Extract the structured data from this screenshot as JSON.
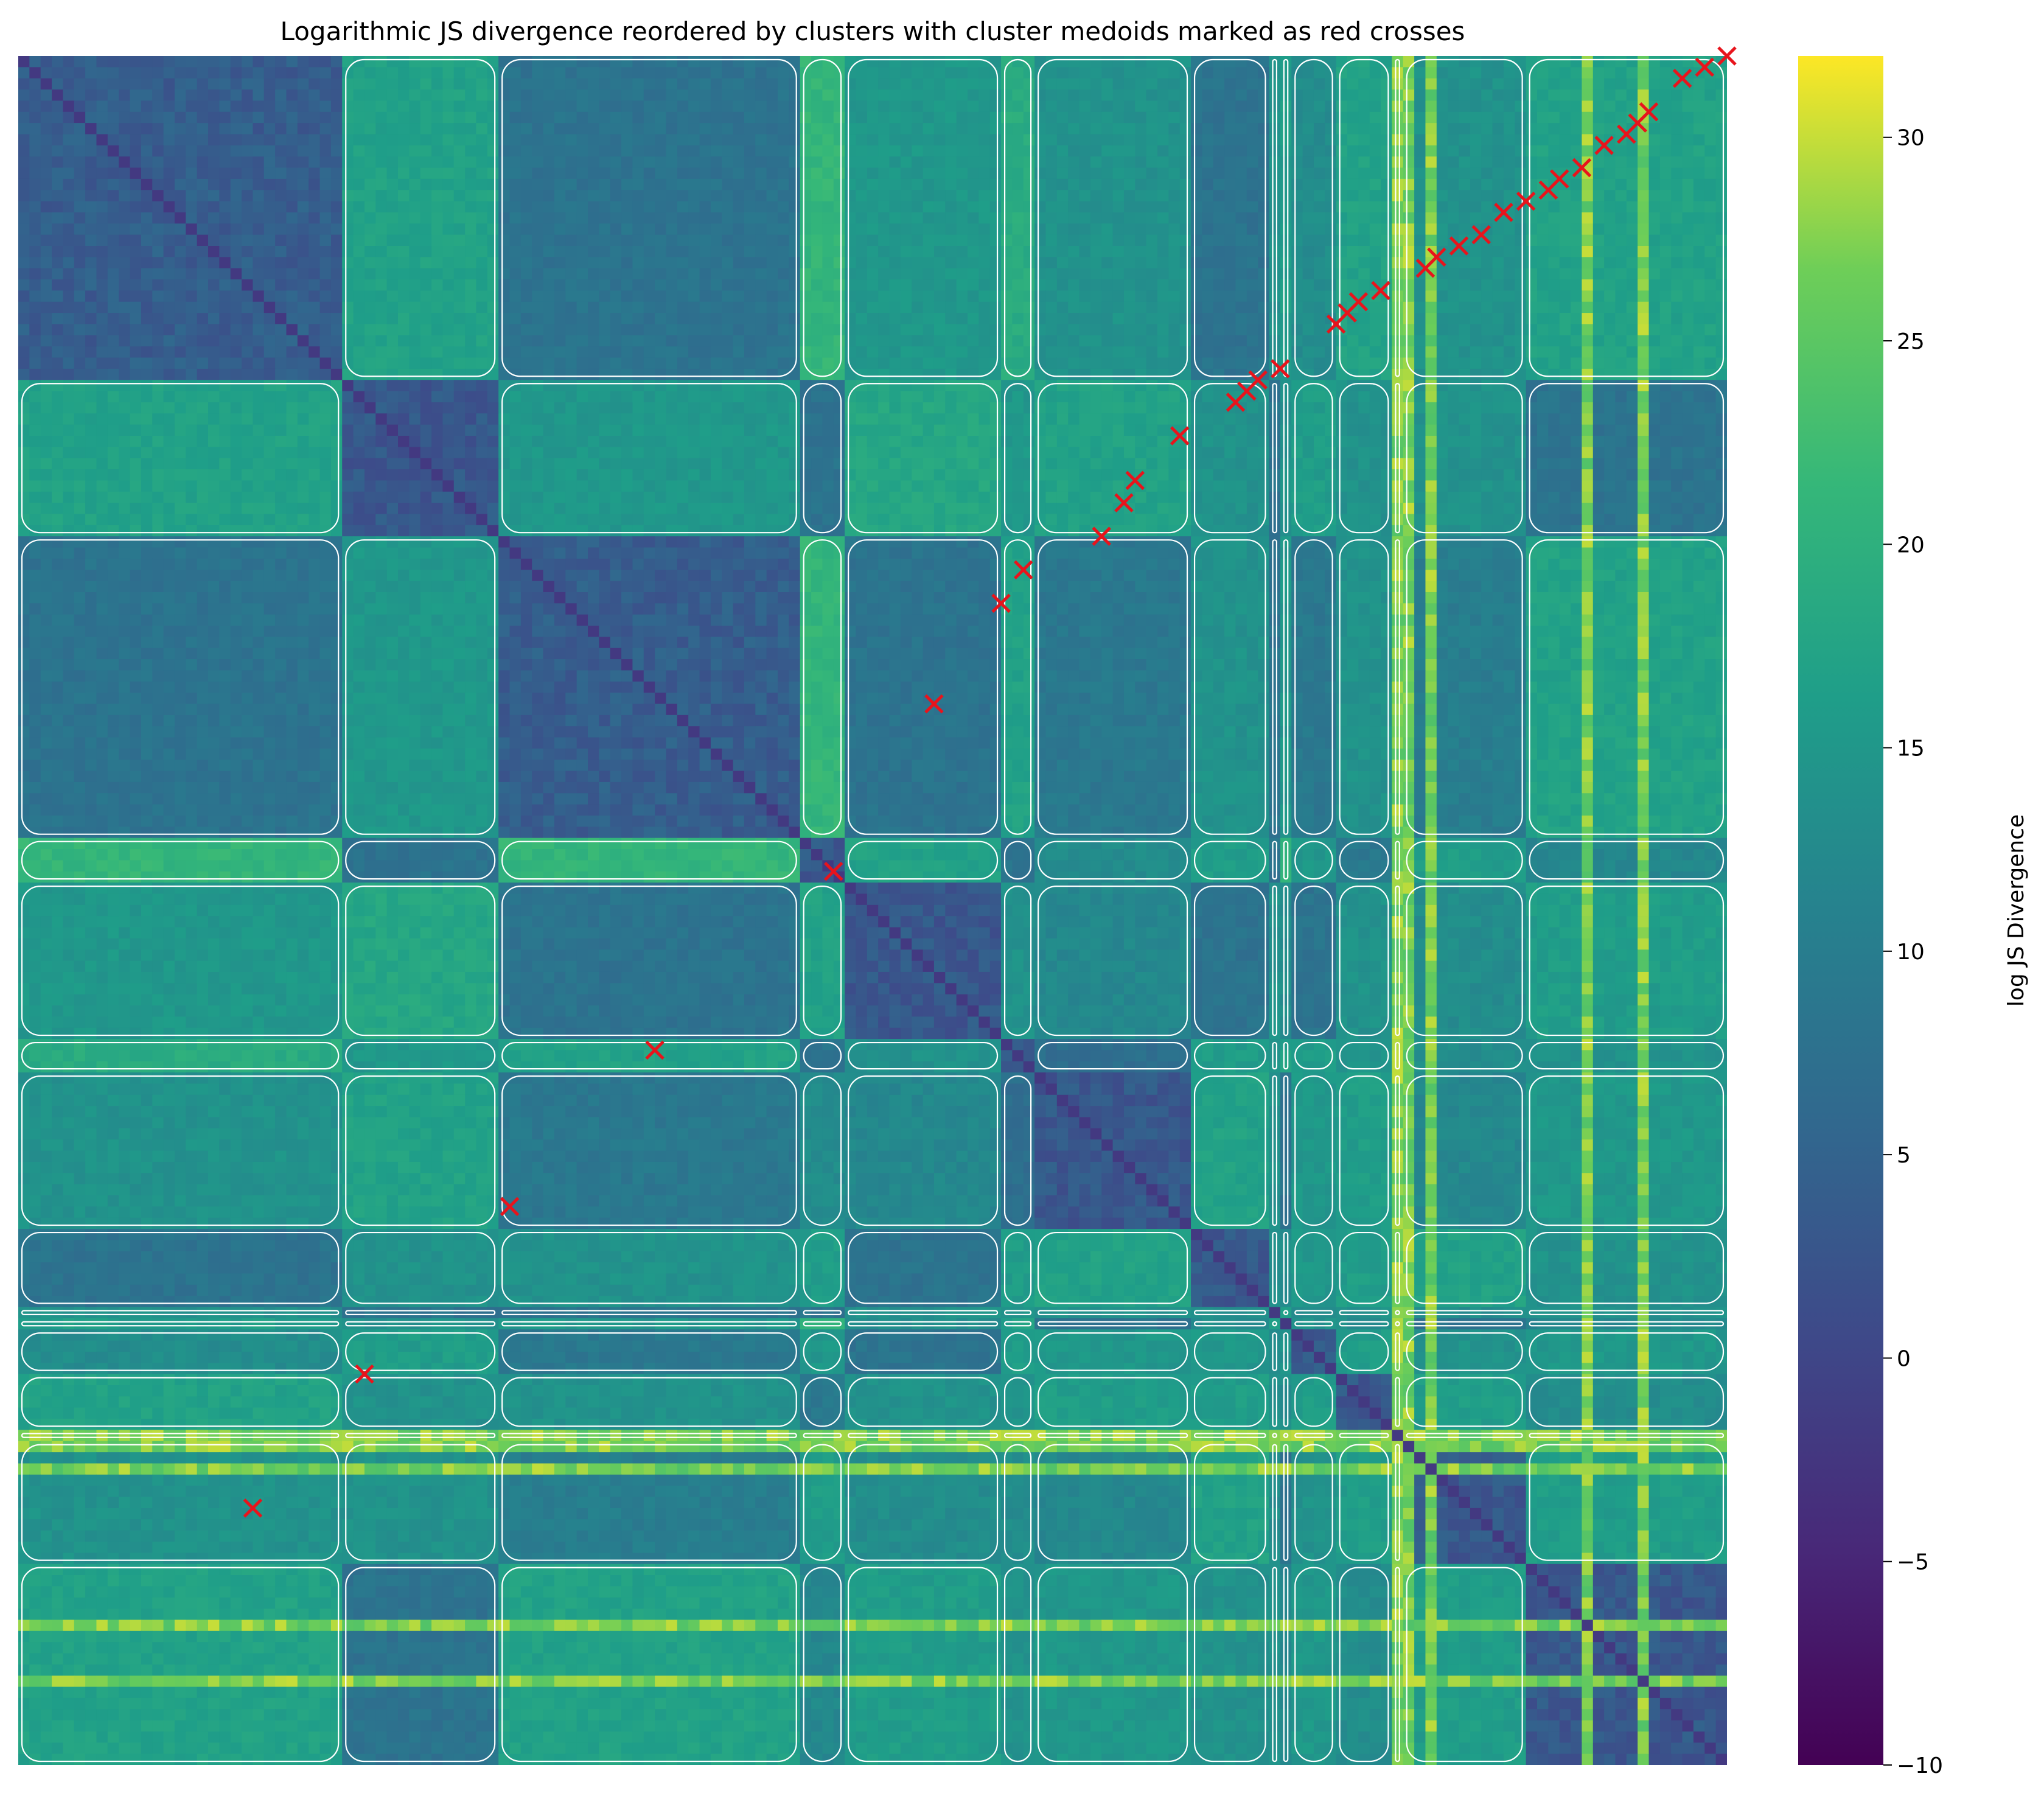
{
  "chart_data": {
    "type": "heatmap",
    "title": "Logarithmic JS divergence reordered by clusters with cluster medoids marked as red crosses",
    "xlabel": "",
    "ylabel": "",
    "colormap": "viridis",
    "colorbar": {
      "label": "log JS Divergence",
      "range": [
        -10,
        32
      ],
      "ticks": [
        -10,
        -5,
        0,
        5,
        10,
        15,
        20,
        25,
        30
      ]
    },
    "matrix_size": 153,
    "cluster_boundaries": [
      29,
      43,
      70,
      74,
      88,
      91,
      105,
      112,
      113,
      114,
      118,
      123,
      124,
      135
    ],
    "block_values": [
      [
        4,
        17,
        8,
        21,
        15,
        19,
        14,
        8,
        14,
        16,
        13,
        17,
        17,
        14,
        17
      ],
      [
        17,
        3,
        15,
        8,
        18,
        15,
        17,
        14,
        8,
        14,
        16,
        14,
        16,
        14,
        8
      ],
      [
        8,
        15,
        4,
        21,
        8,
        17,
        9,
        14,
        8,
        15,
        9,
        14,
        17,
        10,
        17
      ],
      [
        21,
        8,
        21,
        3,
        17,
        8,
        13,
        16,
        8,
        20,
        15,
        9,
        16,
        16,
        12
      ],
      [
        15,
        18,
        8,
        17,
        3,
        14,
        12,
        8,
        14,
        13,
        8,
        14,
        16,
        13,
        16
      ],
      [
        19,
        15,
        17,
        8,
        14,
        3,
        7,
        16,
        14,
        17,
        16,
        14,
        16,
        13,
        14
      ],
      [
        14,
        17,
        9,
        13,
        12,
        7,
        3,
        17,
        14,
        8,
        15,
        16,
        13,
        12,
        15
      ],
      [
        8,
        14,
        14,
        16,
        8,
        16,
        17,
        3,
        14,
        13,
        15,
        16,
        14,
        17,
        14
      ],
      [
        14,
        8,
        8,
        8,
        14,
        14,
        14,
        14,
        3,
        16,
        12,
        14,
        15,
        13,
        14
      ],
      [
        16,
        14,
        15,
        20,
        13,
        17,
        8,
        13,
        16,
        3,
        14,
        13,
        17,
        8,
        12
      ],
      [
        13,
        16,
        9,
        15,
        8,
        16,
        15,
        15,
        12,
        14,
        3,
        16,
        13,
        14,
        15
      ],
      [
        17,
        14,
        14,
        9,
        14,
        14,
        16,
        16,
        14,
        13,
        16,
        3,
        15,
        16,
        13
      ],
      [
        17,
        16,
        17,
        16,
        16,
        16,
        13,
        14,
        15,
        17,
        13,
        15,
        3,
        16,
        14
      ],
      [
        14,
        14,
        10,
        16,
        13,
        13,
        12,
        17,
        13,
        8,
        14,
        16,
        16,
        3,
        16
      ],
      [
        17,
        8,
        17,
        12,
        16,
        14,
        15,
        14,
        14,
        12,
        15,
        13,
        14,
        16,
        3
      ]
    ],
    "bright_rows": [
      123,
      124,
      126,
      140,
      145
    ],
    "bright_cols": [
      123,
      124,
      126,
      140,
      145
    ],
    "medoids": [
      [
        21,
        130
      ],
      [
        31,
        118
      ],
      [
        44,
        103
      ],
      [
        57,
        89
      ],
      [
        73,
        73
      ],
      [
        82,
        58
      ],
      [
        88,
        49
      ],
      [
        90,
        46
      ],
      [
        97,
        43
      ],
      [
        99,
        40
      ],
      [
        100,
        38
      ],
      [
        104,
        34
      ],
      [
        109,
        31
      ],
      [
        110,
        30
      ],
      [
        111,
        29
      ],
      [
        113,
        28
      ],
      [
        118,
        24
      ],
      [
        119,
        23
      ],
      [
        120,
        22
      ],
      [
        122,
        21
      ],
      [
        126,
        19
      ],
      [
        127,
        18
      ],
      [
        129,
        17
      ],
      [
        131,
        16
      ],
      [
        133,
        14
      ],
      [
        135,
        13
      ],
      [
        137,
        12
      ],
      [
        138,
        11
      ],
      [
        140,
        10
      ],
      [
        142,
        8
      ],
      [
        144,
        7
      ],
      [
        145,
        6
      ],
      [
        146,
        5
      ],
      [
        149,
        2
      ],
      [
        151,
        1
      ],
      [
        153,
        0
      ]
    ]
  }
}
